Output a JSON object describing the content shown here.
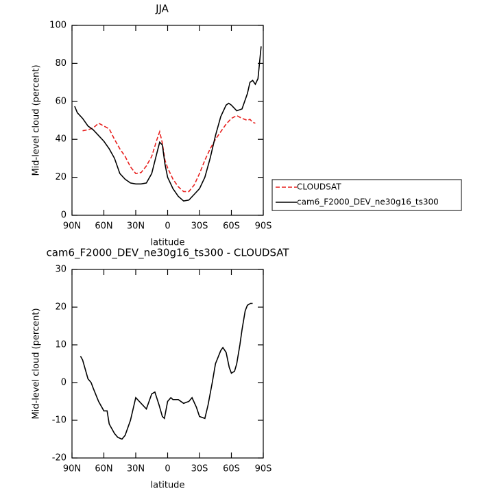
{
  "chart_data": [
    {
      "type": "line",
      "title": "JJA",
      "xlabel": "latitude",
      "ylabel": "Mid-level cloud (percent)",
      "x": [
        87.5,
        85,
        80,
        75,
        70,
        65,
        60,
        55,
        50,
        45,
        40,
        35,
        30,
        25,
        20,
        15,
        10,
        7.5,
        5,
        2.5,
        0,
        -5,
        -10,
        -15,
        -20,
        -25,
        -30,
        -35,
        -40,
        -45,
        -50,
        -55,
        -57.5,
        -60,
        -65,
        -70,
        -75,
        -77.5,
        -80,
        -82.5,
        -85,
        -88
      ],
      "series": [
        {
          "name": "CLOUDSAT",
          "color": "#e8201e",
          "dash": true,
          "values": [
            null,
            null,
            44.5,
            45,
            46,
            48.5,
            47,
            45.5,
            40,
            35,
            31,
            25.5,
            22,
            22.5,
            26,
            31,
            40,
            44,
            38,
            29,
            25,
            19,
            15,
            12.5,
            12.5,
            16,
            22,
            29,
            35,
            40,
            44,
            48,
            49.5,
            51,
            52.5,
            51,
            50,
            50.5,
            49,
            48.5,
            null,
            null
          ]
        },
        {
          "name": "cam6_F2000_DEV_ne30g16_ts300",
          "color": "#000000",
          "dash": false,
          "values": [
            57.4,
            54,
            51,
            47,
            45,
            42,
            39,
            35,
            30,
            22,
            19,
            17,
            16.5,
            16.5,
            17,
            22,
            33,
            38.5,
            37,
            27,
            20,
            14,
            10,
            7.5,
            8,
            11,
            14,
            20,
            30,
            42,
            52,
            58,
            59,
            58,
            55,
            56,
            64,
            70,
            71,
            69,
            72,
            89
          ]
        }
      ],
      "xlim": [
        90,
        -90
      ],
      "xticks": [
        {
          "value": 90,
          "label": "90N"
        },
        {
          "value": 60,
          "label": "60N"
        },
        {
          "value": 30,
          "label": "30N"
        },
        0,
        {
          "value": -30,
          "label": "30S"
        },
        {
          "value": -60,
          "label": "60S"
        },
        {
          "value": -90,
          "label": "90S"
        }
      ],
      "ylim": [
        0,
        100
      ],
      "yticks": [
        0,
        20,
        40,
        60,
        80,
        100
      ],
      "legend": "right"
    },
    {
      "type": "line",
      "title": "cam6_F2000_DEV_ne30g16_ts300 - CLOUDSAT",
      "xlabel": "latitude",
      "ylabel": "Mid-level cloud (percent)",
      "x": [
        82,
        80,
        75,
        72,
        70,
        65,
        60,
        57,
        55,
        50,
        47,
        43,
        40,
        35,
        30,
        25,
        20,
        15,
        12,
        8,
        5,
        3,
        0,
        -3,
        -5,
        -10,
        -15,
        -20,
        -23,
        -27,
        -30,
        -35,
        -38,
        -42,
        -45,
        -50,
        -52,
        -55,
        -58,
        -60,
        -63,
        -65,
        -68,
        -70,
        -73,
        -75,
        -78,
        -80
      ],
      "series": [
        {
          "color": "#000000",
          "dash": false,
          "values": [
            7,
            6,
            1,
            0,
            -1.5,
            -5,
            -7.5,
            -7.5,
            -11,
            -13.5,
            -14.5,
            -15,
            -14,
            -10,
            -4,
            -5.5,
            -7,
            -3,
            -2.5,
            -6,
            -9,
            -9.5,
            -5,
            -4,
            -4.5,
            -4.5,
            -5.5,
            -5,
            -4,
            -6.5,
            -9,
            -9.5,
            -6,
            0,
            5,
            8.5,
            9.3,
            8,
            4,
            2.5,
            3,
            5,
            10,
            14,
            19,
            20.5,
            21,
            21
          ]
        }
      ],
      "xlim": [
        90,
        -90
      ],
      "xticks": [
        {
          "value": 90,
          "label": "90N"
        },
        {
          "value": 60,
          "label": "60N"
        },
        {
          "value": 30,
          "label": "30N"
        },
        0,
        {
          "value": -30,
          "label": "30S"
        },
        {
          "value": -60,
          "label": "60S"
        },
        {
          "value": -90,
          "label": "90S"
        }
      ],
      "ylim": [
        -20,
        30
      ],
      "yticks": [
        -20,
        -10,
        0,
        10,
        20,
        30
      ]
    }
  ]
}
